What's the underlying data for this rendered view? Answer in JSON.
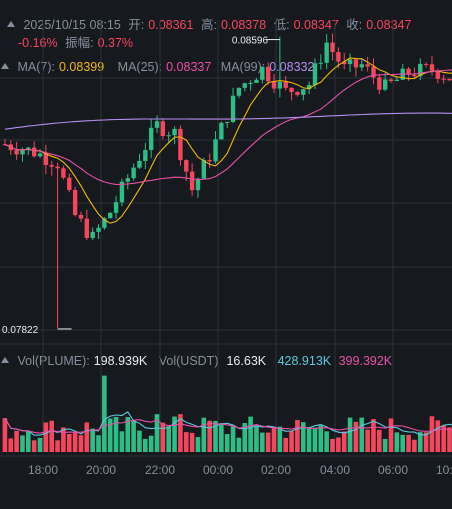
{
  "header": {
    "date_time": "2025/10/15 08:15",
    "open_label": "开:",
    "open": "0.08361",
    "high_label": "高:",
    "high": "0.08378",
    "low_label": "低:",
    "low": "0.08347",
    "close_label": "收:",
    "close": "0.08347",
    "change": "-0.16%",
    "amp_label": "振幅:",
    "amp": "0.37%"
  },
  "ma_legend": {
    "ma7_label": "MA(7):",
    "ma7_value": "0.08399",
    "ma25_label": "MA(25):",
    "ma25_value": "0.08337",
    "ma99_label": "MA(99):",
    "ma99_value": "0.08332"
  },
  "vol_legend": {
    "vol_plume_label": "Vol(PLUME):",
    "vol_plume_value": "198.939K",
    "vol_usdt_label": "Vol(USDT)",
    "vol_usdt_value": "16.63K",
    "ma5_value": "428.913K",
    "ma10_value": "399.392K"
  },
  "colors": {
    "up": "#2ebd85",
    "down": "#f6465d",
    "ma7": "#f0b90b",
    "ma25": "#e84fa8",
    "ma99": "#b58cf2",
    "vol_ma5": "#5ec8e0",
    "vol_ma10": "#e84fa8"
  },
  "chart_data": {
    "type": "candlestick",
    "timeframe": "15m",
    "x_tick_labels": [
      "18:00",
      "20:00",
      "22:00",
      "00:00",
      "02:00",
      "04:00",
      "06:00",
      "10:"
    ],
    "price_range": [
      0.0779,
      0.0864
    ],
    "high_marker": "0.08596",
    "low_marker": "0.07822",
    "volume_range": [
      0,
      1100000
    ]
  }
}
